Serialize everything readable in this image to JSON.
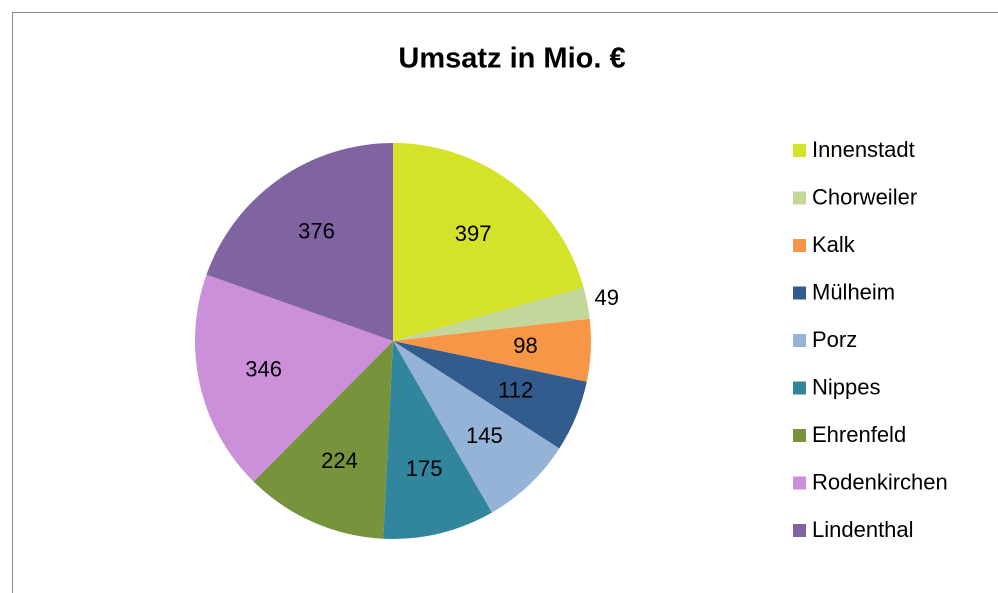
{
  "chart_data": {
    "type": "pie",
    "title": "Umsatz in Mio. €",
    "categories": [
      "Innenstadt",
      "Chorweiler",
      "Kalk",
      "Mülheim",
      "Porz",
      "Nippes",
      "Ehrenfeld",
      "Rodenkirchen",
      "Lindenthal"
    ],
    "values": [
      397,
      49,
      98,
      112,
      145,
      175,
      224,
      346,
      376
    ],
    "colors": [
      "#d4e22a",
      "#c4d79b",
      "#f79646",
      "#335c8e",
      "#95b3d7",
      "#31859c",
      "#77933c",
      "#cc8fd9",
      "#8064a2"
    ],
    "legend": "right"
  }
}
